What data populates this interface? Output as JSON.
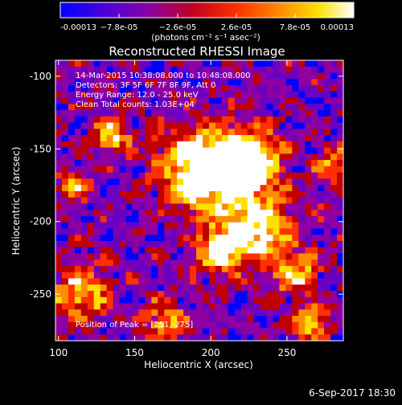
{
  "chart_data": {
    "type": "heatmap",
    "title": "Reconstructed RHESSI Image",
    "xlabel": "Heliocentric X (arcsec)",
    "ylabel": "Heliocentric Y (arcsec)",
    "xlim": [
      98,
      287
    ],
    "ylim": [
      -282,
      -89
    ],
    "x_ticks": [
      100,
      150,
      200,
      250
    ],
    "y_ticks": [
      -100,
      -150,
      -200,
      -250
    ],
    "colorbar": {
      "ticks": [
        "-0.00013",
        "−7.8e-05",
        "−2.6e-05",
        "2.6e-05",
        "7.8e-05",
        "0.00013"
      ],
      "tick_values": [
        -0.00013,
        -7.8e-05,
        -2.6e-05,
        2.6e-05,
        7.8e-05,
        0.00013
      ],
      "range": [
        -0.00013,
        0.00013
      ],
      "units_label": "(photons cm⁻² s⁻¹ asec⁻²)",
      "colors": [
        "#0000ff",
        "#6a00c0",
        "#9000a0",
        "#c00000",
        "#ff3000",
        "#ff8c00",
        "#ffe000",
        "#ffffff"
      ]
    },
    "annotations": [
      "14-Mar-2015 10:38:08.000 to 10:48:08.000",
      "Detectors: 3F 5F 6F 7F 8F 9F, Att 0",
      "Energy Range: 12.0 - 25.0 keV",
      "Clean    Total counts: 1.03E+04"
    ],
    "peak_label": "Position of Peak = [251,-275]",
    "peak": [
      251,
      -275
    ]
  },
  "footer": {
    "date": "6-Sep-2017 18:30"
  }
}
